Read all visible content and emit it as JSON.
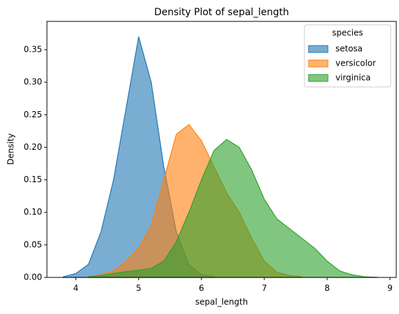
{
  "chart_data": {
    "type": "area",
    "title": "Density Plot of sepal_length",
    "xlabel": "sepal_length",
    "ylabel": "Density",
    "x": [
      3.8,
      4.0,
      4.2,
      4.4,
      4.6,
      4.8,
      5.0,
      5.2,
      5.4,
      5.6,
      5.8,
      6.0,
      6.2,
      6.4,
      6.6,
      6.8,
      7.0,
      7.2,
      7.4,
      7.6,
      7.8,
      8.0,
      8.2,
      8.4,
      8.6,
      8.8
    ],
    "series": [
      {
        "name": "setosa",
        "color": "#1f77b4",
        "values": [
          0.001,
          0.006,
          0.02,
          0.07,
          0.15,
          0.26,
          0.37,
          0.3,
          0.17,
          0.07,
          0.02,
          0.004,
          0.001,
          null,
          null,
          null,
          null,
          null,
          null,
          null,
          null,
          null,
          null,
          null,
          null,
          null
        ]
      },
      {
        "name": "versicolor",
        "color": "#ff7f0e",
        "values": [
          null,
          null,
          0.001,
          0.004,
          0.01,
          0.025,
          0.045,
          0.08,
          0.15,
          0.22,
          0.235,
          0.21,
          0.17,
          0.13,
          0.1,
          0.06,
          0.025,
          0.008,
          0.003,
          0.001,
          null,
          null,
          null,
          null,
          null,
          null
        ]
      },
      {
        "name": "virginica",
        "color": "#2ca02c",
        "values": [
          null,
          null,
          0.001,
          0.003,
          0.006,
          0.009,
          0.011,
          0.014,
          0.025,
          0.055,
          0.1,
          0.15,
          0.195,
          0.212,
          0.2,
          0.165,
          0.12,
          0.09,
          0.075,
          0.06,
          0.045,
          0.025,
          0.01,
          0.004,
          0.001,
          0.0002
        ]
      }
    ],
    "fill_opacity": 0.6,
    "legend_title": "species",
    "legend": "upper right",
    "xlim": [
      3.54,
      9.1
    ],
    "ylim": [
      0,
      0.3935
    ],
    "xticks": [
      4,
      5,
      6,
      7,
      8,
      9
    ],
    "yticks": [
      {
        "value": 0,
        "label": "0.00"
      },
      {
        "value": 0.05,
        "label": "0.05"
      },
      {
        "value": 0.1,
        "label": "0.10"
      },
      {
        "value": 0.15,
        "label": "0.15"
      },
      {
        "value": 0.2,
        "label": "0.20"
      },
      {
        "value": 0.25,
        "label": "0.25"
      },
      {
        "value": 0.3,
        "label": "0.30"
      },
      {
        "value": 0.35,
        "label": "0.35"
      }
    ]
  }
}
